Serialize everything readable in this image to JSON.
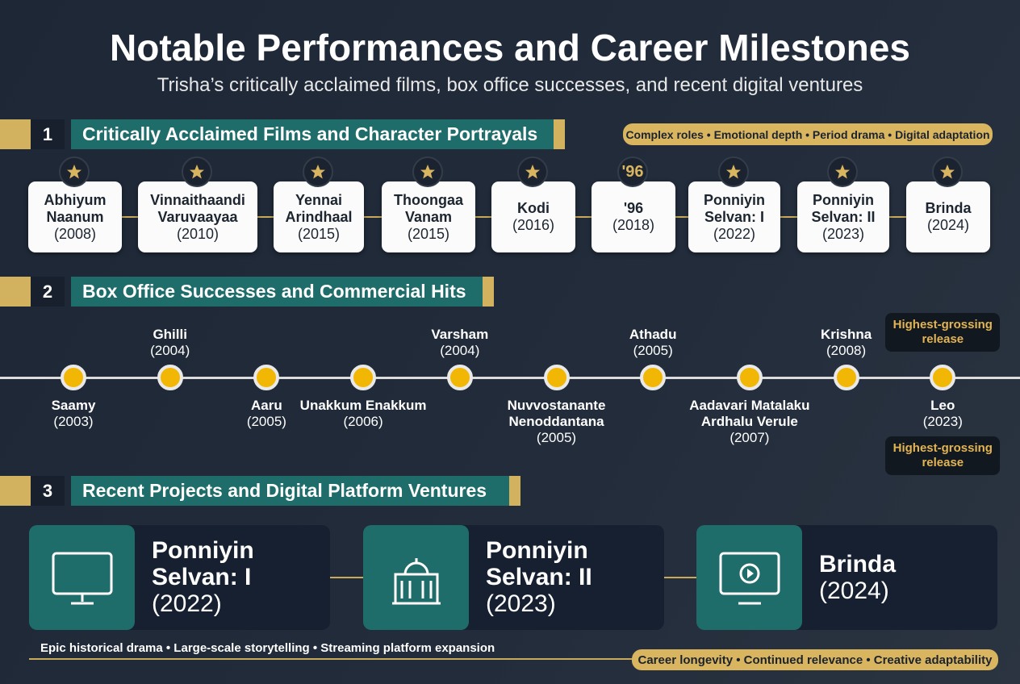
{
  "header": {
    "title": "Notable Performances and Career Milestones",
    "subtitle": "Trisha’s critically acclaimed films, box office successes, and recent digital ventures"
  },
  "sections": [
    {
      "number": "1",
      "title": "Critically Acclaimed Films and Character Portrayals",
      "tags": "Complex roles • Emotional depth • Period drama • Digital adaptation",
      "films": [
        {
          "title": "Abhiyum Naanum",
          "year": "(2008)"
        },
        {
          "title": "Vinnaithaandi Varuvaayaa",
          "year": "(2010)"
        },
        {
          "title": "Yennai Arindhaal",
          "year": "(2015)"
        },
        {
          "title": "Thoongaa Vanam",
          "year": "(2015)"
        },
        {
          "title": "Kodi",
          "year": "(2016)"
        },
        {
          "title": "'96",
          "year": "(2018)",
          "icon_text": "'96"
        },
        {
          "title": "Ponniyin Selvan: I",
          "year": "(2022)"
        },
        {
          "title": "Ponniyin Selvan: II",
          "year": "(2023)"
        },
        {
          "title": "Brinda",
          "year": "(2024)"
        }
      ]
    },
    {
      "number": "2",
      "title": "Box Office Successes and Commercial Hits",
      "timeline": [
        {
          "title": "Saamy",
          "year": "(2003)"
        },
        {
          "title": "Ghilli",
          "year": "(2004)"
        },
        {
          "title": "Aaru",
          "year": "(2005)"
        },
        {
          "title": "Unakkum Enakkum",
          "year": "(2006)"
        },
        {
          "title": "Varsham",
          "year": "(2004)"
        },
        {
          "title": "Nuvvostanante Nenoddantana",
          "year": "(2005)"
        },
        {
          "title": "Athadu",
          "year": "(2005)"
        },
        {
          "title": "Aadavari Matalaku Ardhalu Verule",
          "year": "(2007)"
        },
        {
          "title": "Krishna",
          "year": "(2008)"
        },
        {
          "title": "Leo",
          "year": "(2023)",
          "badges": [
            "Highest-grossing release",
            "Highest-grossing release"
          ]
        }
      ]
    },
    {
      "number": "3",
      "title": "Recent Projects and Digital Platform Ventures",
      "cards": [
        {
          "title": "Ponniyin Selvan: I",
          "year": "(2022)"
        },
        {
          "title": "Ponniyin Selvan: II",
          "year": "(2023)"
        },
        {
          "title": "Brinda",
          "year": "(2024)"
        }
      ],
      "caption": "Epic historical drama • Large-scale storytelling • Streaming platform expansion",
      "footer_tags": "Career longevity • Continued relevance • Creative adaptability"
    }
  ]
}
